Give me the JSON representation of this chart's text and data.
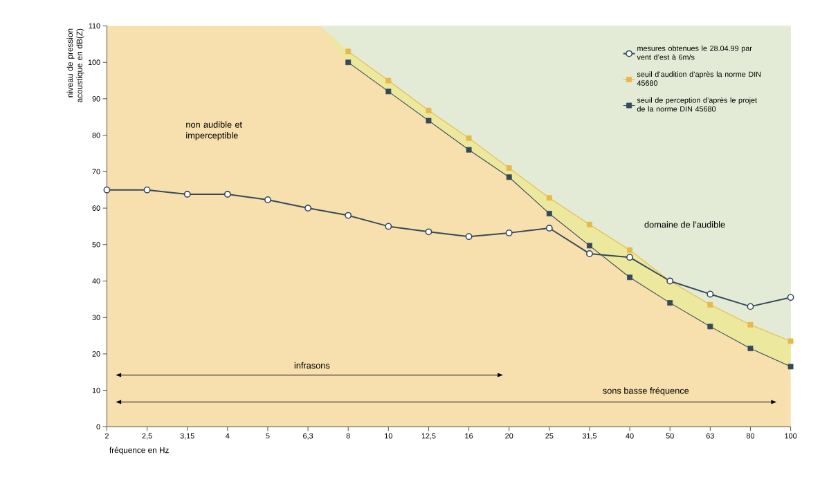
{
  "chart_data": {
    "type": "line",
    "xlabel": "fréquence en Hz",
    "ylabel": "niveau de pression acoustique en dB(Z)",
    "categories": [
      "2",
      "2,5",
      "3,15",
      "4",
      "5",
      "6,3",
      "8",
      "10",
      "12,5",
      "16",
      "20",
      "25",
      "31,5",
      "40",
      "50",
      "63",
      "80",
      "100"
    ],
    "ylim": [
      0,
      110
    ],
    "yticks": [
      0,
      10,
      20,
      30,
      40,
      50,
      60,
      70,
      80,
      90,
      100,
      110
    ],
    "series": [
      {
        "name": "mesures obtenues le 28.04.99 par vent d’est à 6m/s",
        "color": "#34495a",
        "marker": "circle",
        "values": [
          65,
          65,
          63.8,
          63.8,
          62.3,
          60,
          58,
          55,
          53.5,
          52.2,
          53.2,
          54.5,
          47.5,
          46.5,
          40,
          36.4,
          33,
          35.5
        ]
      },
      {
        "name": "seuil d’audition d’après la norme DIN 45680",
        "color": "#e8b84a",
        "marker": "square",
        "values": [
          null,
          null,
          null,
          null,
          null,
          null,
          103,
          95,
          86.8,
          79.2,
          71,
          62.8,
          55.5,
          48.5,
          40,
          33.5,
          28,
          23.5
        ]
      },
      {
        "name": "seuil de perception d’après le projet de la norme DIN 45680",
        "color": "#34495a",
        "marker": "square",
        "values": [
          null,
          null,
          null,
          null,
          null,
          null,
          100,
          92,
          84,
          76,
          68.5,
          58.5,
          49.7,
          41,
          34,
          27.5,
          21.5,
          16.5
        ]
      }
    ],
    "legend": "top right",
    "annotations": [
      "non audible et imperceptible",
      "domaine de l’audible",
      "infrasons",
      "sons basse fréquence"
    ]
  }
}
